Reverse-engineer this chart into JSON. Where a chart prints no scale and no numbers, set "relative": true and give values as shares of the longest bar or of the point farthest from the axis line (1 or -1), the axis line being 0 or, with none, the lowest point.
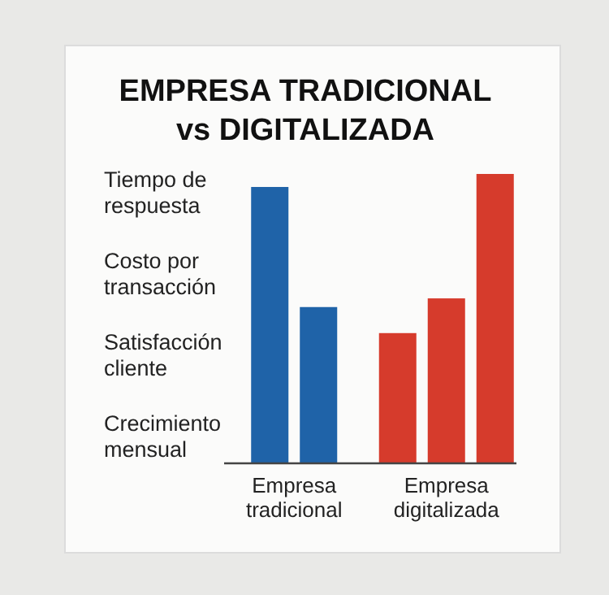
{
  "chart_data": {
    "type": "bar",
    "title": "EMPRESA TRADICIONAL vs DIGITALIZADA",
    "relative": true,
    "categories": [
      "Empresa tradicional",
      "Empresa digitalizada"
    ],
    "series": [
      {
        "colors": [
          "#1f63a8",
          "#d63b2c"
        ],
        "values": [
          0.955,
          0.45
        ]
      },
      {
        "colors": [
          "#1f63a8",
          "#d63b2c"
        ],
        "values": [
          0.54,
          0.57
        ]
      },
      {
        "color": "#d63b2c",
        "values": [
          null,
          1
        ]
      }
    ],
    "annotations": [
      "Tiempo de respuesta",
      "Costo por transacción",
      "Satisfacción cliente",
      "Crecimiento mensual"
    ]
  }
}
